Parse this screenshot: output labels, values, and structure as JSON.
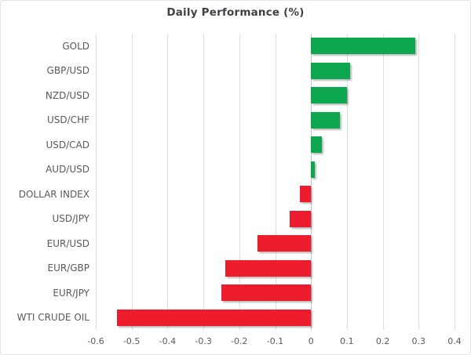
{
  "title": "Daily Performance (%)",
  "colors": {
    "positive": "#0ea64e",
    "negative": "#ec1c2c",
    "gridline": "#dedede",
    "zero_line": "#c6c6c6",
    "title_text": "#3f3f46",
    "label_text": "#595959",
    "background": "#ffffff",
    "border": "#e4e4e4"
  },
  "chart_data": {
    "type": "bar",
    "orientation": "horizontal",
    "title": "Daily Performance (%)",
    "xlabel": "",
    "ylabel": "",
    "legend": "none",
    "grid": "vertical",
    "categories": [
      "GOLD",
      "GBP/USD",
      "NZD/USD",
      "USD/CHF",
      "USD/CAD",
      "AUD/USD",
      "DOLLAR INDEX",
      "USD/JPY",
      "EUR/USD",
      "EUR/GBP",
      "EUR/JPY",
      "WTI CRUDE OIL"
    ],
    "values": [
      0.29,
      0.11,
      0.1,
      0.08,
      0.03,
      0.01,
      -0.03,
      -0.06,
      -0.15,
      -0.24,
      -0.25,
      -0.54
    ],
    "xlim": [
      -0.6,
      0.4
    ],
    "x_ticks": [
      -0.6,
      -0.5,
      -0.4,
      -0.3,
      -0.2,
      -0.1,
      0,
      0.1,
      0.2,
      0.3,
      0.4
    ],
    "x_tick_labels": [
      "-0.6",
      "-0.5",
      "-0.4",
      "-0.3",
      "-0.2",
      "-0.1",
      "0",
      "0.1",
      "0.2",
      "0.3",
      "0.4"
    ],
    "positive_color": "#0ea64e",
    "negative_color": "#ec1c2c"
  }
}
